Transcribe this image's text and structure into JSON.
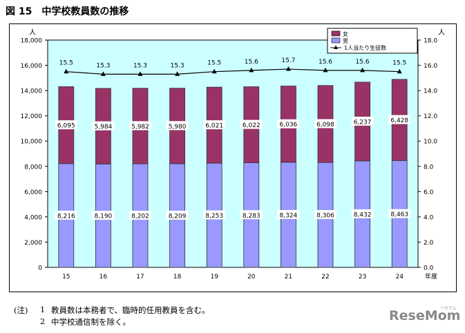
{
  "figure_title": "図 15　中学校教員数の推移",
  "chart_data": {
    "type": "bar",
    "stacked": true,
    "categories": [
      "15",
      "16",
      "17",
      "18",
      "19",
      "20",
      "21",
      "22",
      "23",
      "24"
    ],
    "xlabel": "年度",
    "ylabel_left": "人",
    "ylabel_right": "人",
    "ylim": [
      0,
      18000
    ],
    "y2lim": [
      0,
      18
    ],
    "yticks": [
      "0",
      "2,000",
      "4,000",
      "6,000",
      "8,000",
      "10,000",
      "12,000",
      "14,000",
      "16,000",
      "18,000"
    ],
    "y2ticks": [
      "0.0",
      "2.0",
      "4.0",
      "6.0",
      "8.0",
      "10.0",
      "12.0",
      "14.0",
      "16.0",
      "18.0"
    ],
    "series": [
      {
        "name": "男",
        "kind": "bar",
        "color": "#9999ff",
        "values": [
          8216,
          8190,
          8202,
          8209,
          8253,
          8283,
          8324,
          8306,
          8432,
          8463
        ],
        "labels": [
          "8,216",
          "8,190",
          "8,202",
          "8,209",
          "8,253",
          "8,283",
          "8,324",
          "8,306",
          "8,432",
          "8,463"
        ]
      },
      {
        "name": "女",
        "kind": "bar",
        "color": "#993366",
        "values": [
          6095,
          5984,
          5982,
          5980,
          6021,
          6022,
          6036,
          6098,
          6237,
          6428
        ],
        "labels": [
          "6,095",
          "5,984",
          "5,982",
          "5,980",
          "6,021",
          "6,022",
          "6,036",
          "6,098",
          "6,237",
          "6,428"
        ]
      },
      {
        "name": "1人当たり生徒数",
        "kind": "line",
        "axis": "right",
        "color": "#000000",
        "values": [
          15.5,
          15.3,
          15.3,
          15.3,
          15.5,
          15.6,
          15.7,
          15.6,
          15.6,
          15.5
        ],
        "labels": [
          "15.5",
          "15.3",
          "15.3",
          "15.3",
          "15.5",
          "15.6",
          "15.7",
          "15.6",
          "15.6",
          "15.5"
        ]
      }
    ],
    "plot_background": "#ccffff",
    "grid": false,
    "legend_position": "top-right"
  },
  "notes": {
    "prefix": "(注)",
    "items": [
      {
        "num": "1",
        "text": "教員数は本務者で、臨時的任用教員を含む。"
      },
      {
        "num": "2",
        "text": "中学校通信制を除く。"
      }
    ]
  },
  "watermark": {
    "text": "ReseMom",
    "sub": "リセマム"
  }
}
